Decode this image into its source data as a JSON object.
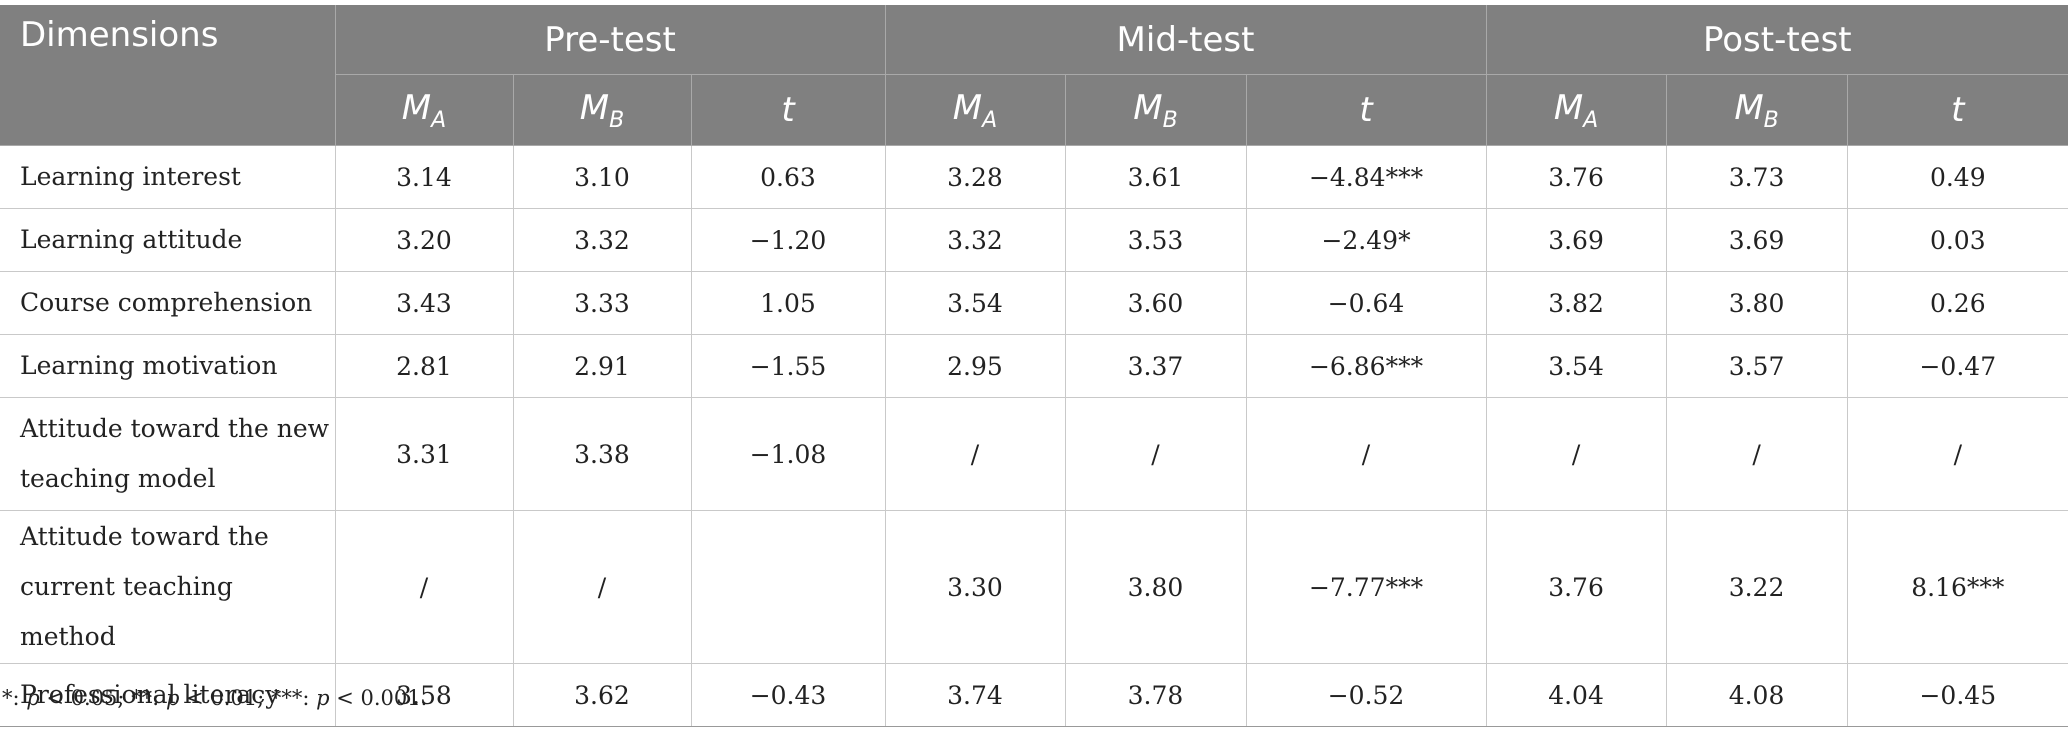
{
  "header": {
    "dimensions_label": "Dimensions",
    "groups": [
      "Pre-test",
      "Mid-test",
      "Post-test"
    ],
    "sub_columns": [
      {
        "main": "M",
        "sub": "A"
      },
      {
        "main": "M",
        "sub": "B"
      },
      {
        "main": "t",
        "sub": ""
      }
    ]
  },
  "rows": [
    {
      "dimension": "Learning interest",
      "values": [
        "3.14",
        "3.10",
        "0.63",
        "3.28",
        "3.61",
        "−4.84***",
        "3.76",
        "3.73",
        "0.49"
      ]
    },
    {
      "dimension": "Learning attitude",
      "values": [
        "3.20",
        "3.32",
        "−1.20",
        "3.32",
        "3.53",
        "−2.49*",
        "3.69",
        "3.69",
        "0.03"
      ]
    },
    {
      "dimension": "Course comprehension",
      "values": [
        "3.43",
        "3.33",
        "1.05",
        "3.54",
        "3.60",
        "−0.64",
        "3.82",
        "3.80",
        "0.26"
      ]
    },
    {
      "dimension": "Learning motivation",
      "values": [
        "2.81",
        "2.91",
        "−1.55",
        "2.95",
        "3.37",
        "−6.86***",
        "3.54",
        "3.57",
        "−0.47"
      ]
    },
    {
      "dimension": "Attitude toward the new teaching model",
      "values": [
        "3.31",
        "3.38",
        "−1.08",
        "/",
        "/",
        "/",
        "/",
        "/",
        "/"
      ]
    },
    {
      "dimension": "Attitude toward the current teaching method",
      "values": [
        "/",
        "/",
        "",
        "3.30",
        "3.80",
        "−7.77***",
        "3.76",
        "3.22",
        "8.16***"
      ]
    },
    {
      "dimension": "Professional literacy",
      "values": [
        "3.58",
        "3.62",
        "−0.43",
        "3.74",
        "3.78",
        "−0.52",
        "4.04",
        "4.08",
        "−0.45"
      ]
    }
  ],
  "footnote": {
    "parts": [
      {
        "text": "*: ",
        "italic": false
      },
      {
        "text": "p",
        "italic": true
      },
      {
        "text": " < 0.05; **: ",
        "italic": false
      },
      {
        "text": "p",
        "italic": true
      },
      {
        "text": " < 0.01; ***: ",
        "italic": false
      },
      {
        "text": "p",
        "italic": true
      },
      {
        "text": " < 0.001.",
        "italic": false
      }
    ]
  }
}
